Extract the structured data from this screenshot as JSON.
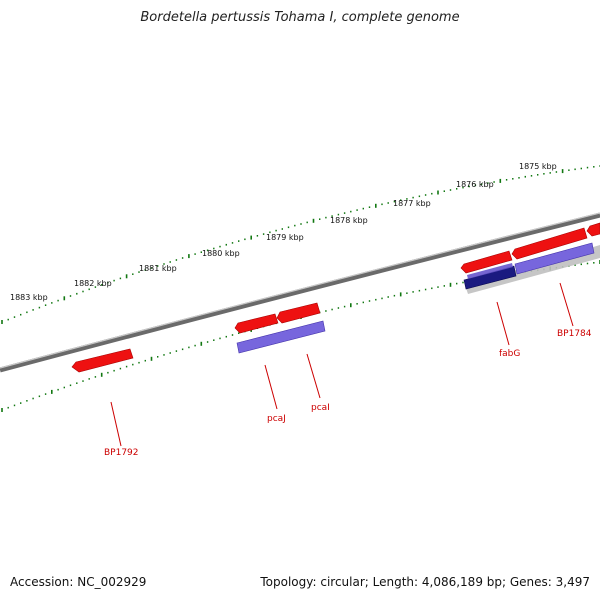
{
  "title": "Bordetella pertussis Tohama I, complete genome",
  "footer": {
    "accession": "Accession: NC_002929",
    "summary": "Topology: circular; Length: 4,086,189 bp; Genes: 3,497"
  },
  "colors": {
    "cds_red": "#ee1111",
    "orf_blue": "#7766dd",
    "orf_dark_blue": "#1a1a80",
    "tick_green": "#117711",
    "backbone_grey": "#777777",
    "label_red": "#cc0000"
  },
  "scale_labels": [
    "1875 kbp",
    "1876 kbp",
    "1877 kbp",
    "1878 kbp",
    "1879 kbp",
    "1880 kbp",
    "1881 kbp",
    "1882 kbp",
    "1883 kbp"
  ],
  "gene_labels": [
    "BP1784",
    "fabG",
    "pcaI",
    "pcaJ",
    "BP1792"
  ]
}
